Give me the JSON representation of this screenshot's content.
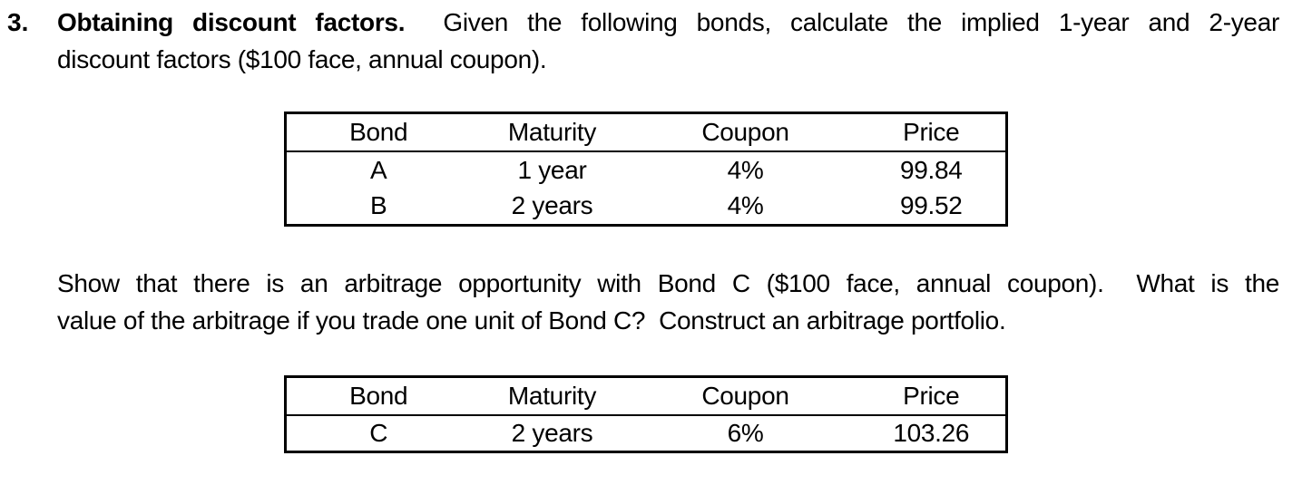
{
  "problem": {
    "number": "3.",
    "para1": {
      "line1_bold": "Obtaining discount factors.",
      "line1_rest": "  Given the following bonds, calculate the implied 1-year and 2-year",
      "line2": "discount factors ($100 face, annual coupon)."
    },
    "para2": {
      "line1": "Show that there is an arbitrage opportunity with Bond C ($100 face, annual coupon).  What is the",
      "line2": "value of the arbitrage if you trade one unit of Bond C?  Construct an arbitrage portfolio."
    }
  },
  "table1": {
    "headers": [
      "Bond",
      "Maturity",
      "Coupon",
      "Price"
    ],
    "rows": [
      [
        "A",
        "1 year",
        "4%",
        "99.84"
      ],
      [
        "B",
        "2 years",
        "4%",
        "99.52"
      ]
    ]
  },
  "table2": {
    "headers": [
      "Bond",
      "Maturity",
      "Coupon",
      "Price"
    ],
    "rows": [
      [
        "C",
        "2 years",
        "6%",
        "103.26"
      ]
    ]
  },
  "colors": {
    "text": "#000000",
    "background": "#ffffff",
    "table_border": "#000000"
  }
}
